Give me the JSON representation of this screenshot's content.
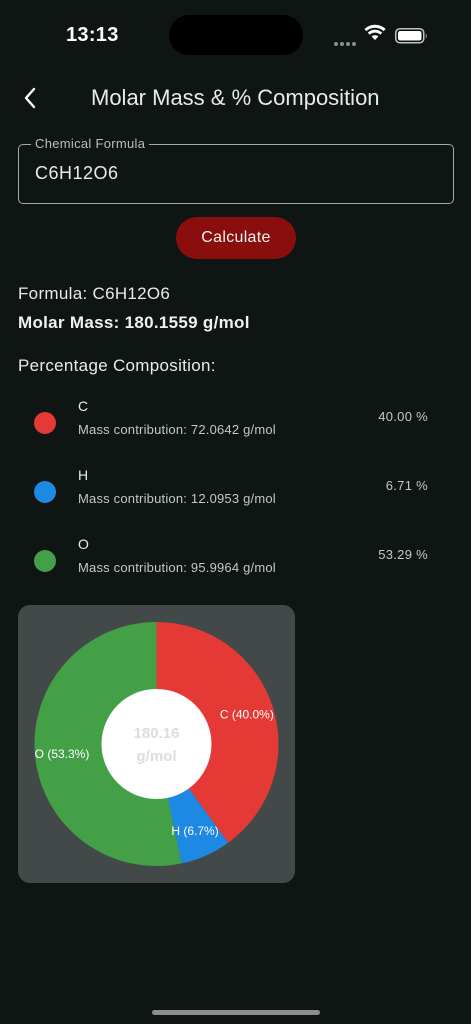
{
  "status_bar": {
    "time": "13:13"
  },
  "header": {
    "title": "Molar Mass & % Composition",
    "back_icon": "chevron-left-icon"
  },
  "input": {
    "label": "Chemical Formula",
    "value": "C6H12O6"
  },
  "actions": {
    "calculate_label": "Calculate"
  },
  "result": {
    "formula_text": "Formula: C6H12O6",
    "molar_mass_text": "Molar Mass: 180.1559 g/mol",
    "composition_heading": "Percentage Composition:"
  },
  "composition": [
    {
      "symbol": "C",
      "contribution": "Mass contribution: 72.0642 g/mol",
      "percent": "40.00 %",
      "color": "#e53935"
    },
    {
      "symbol": "H",
      "contribution": "Mass contribution: 12.0953 g/mol",
      "percent": "6.71 %",
      "color": "#1e88e5"
    },
    {
      "symbol": "O",
      "contribution": "Mass contribution: 95.9964 g/mol",
      "percent": "53.29 %",
      "color": "#43a047"
    }
  ],
  "chart_data": {
    "type": "pie",
    "categories": [
      "C",
      "H",
      "O"
    ],
    "values": [
      40.0,
      6.7,
      53.3
    ],
    "slice_labels": [
      "C (40.0%)",
      "H (6.7%)",
      "O (53.3%)"
    ],
    "colors": [
      "#e53935",
      "#1e88e5",
      "#43a047"
    ],
    "center_label_line1": "180.16",
    "center_label_line2": "g/mol"
  }
}
